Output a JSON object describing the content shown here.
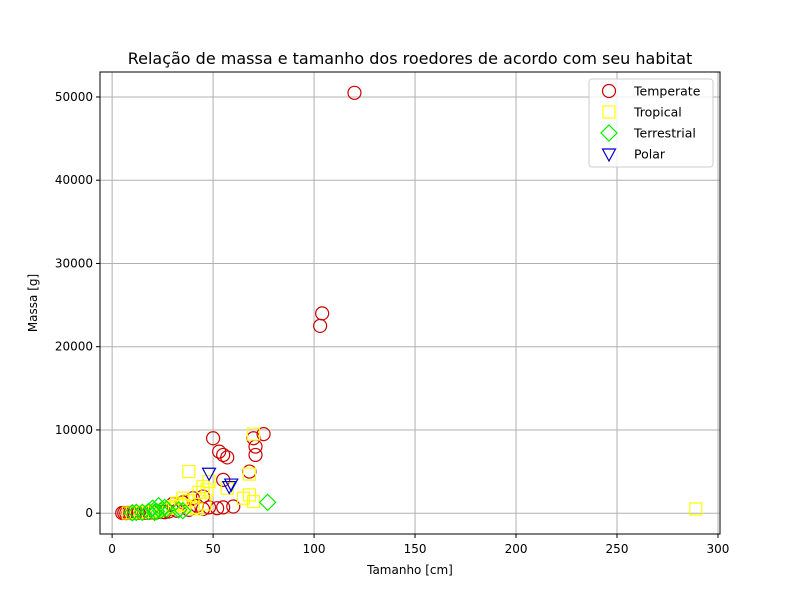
{
  "chart_data": {
    "type": "scatter",
    "title": "Relação de massa e tamanho dos roedores de acordo com seu habitat",
    "xlabel": "Tamanho [cm]",
    "ylabel": "Massa [g]",
    "xlim": [
      -6,
      301
    ],
    "ylim": [
      -2500,
      53000
    ],
    "xticks": [
      0,
      50,
      100,
      150,
      200,
      250,
      300
    ],
    "yticks": [
      0,
      10000,
      20000,
      30000,
      40000,
      50000
    ],
    "grid": true,
    "legend_position": "top-right",
    "series": [
      {
        "name": "Temperate",
        "marker": "circle",
        "color": "#cc0000",
        "points": [
          [
            120,
            50500
          ],
          [
            104,
            24000
          ],
          [
            103,
            22500
          ],
          [
            50,
            9000
          ],
          [
            70,
            9000
          ],
          [
            75,
            9500
          ],
          [
            71,
            8000
          ],
          [
            71,
            7000
          ],
          [
            53,
            7400
          ],
          [
            55,
            7000
          ],
          [
            57,
            6700
          ],
          [
            68,
            5000
          ],
          [
            55,
            4000
          ],
          [
            45,
            2000
          ],
          [
            40,
            1800
          ],
          [
            35,
            1300
          ],
          [
            30,
            1100
          ],
          [
            42,
            900
          ],
          [
            48,
            700
          ],
          [
            52,
            600
          ],
          [
            55,
            700
          ],
          [
            60,
            800
          ],
          [
            45,
            500
          ],
          [
            38,
            400
          ],
          [
            32,
            300
          ],
          [
            28,
            200
          ],
          [
            25,
            150
          ],
          [
            20,
            100
          ],
          [
            15,
            80
          ],
          [
            12,
            60
          ],
          [
            10,
            50
          ],
          [
            8,
            40
          ],
          [
            6,
            30
          ],
          [
            5,
            20
          ],
          [
            7,
            10
          ],
          [
            9,
            15
          ],
          [
            11,
            20
          ],
          [
            13,
            30
          ],
          [
            16,
            50
          ],
          [
            18,
            60
          ],
          [
            22,
            90
          ],
          [
            26,
            120
          ]
        ]
      },
      {
        "name": "Tropical",
        "marker": "square",
        "color": "#ffff00",
        "points": [
          [
            289,
            500
          ],
          [
            38,
            5000
          ],
          [
            70,
            9500
          ],
          [
            68,
            4700
          ],
          [
            48,
            3800
          ],
          [
            45,
            3200
          ],
          [
            57,
            3000
          ],
          [
            47,
            2800
          ],
          [
            43,
            2500
          ],
          [
            35,
            1800
          ],
          [
            38,
            1500
          ],
          [
            32,
            1200
          ],
          [
            30,
            800
          ],
          [
            28,
            600
          ],
          [
            25,
            400
          ],
          [
            22,
            300
          ],
          [
            20,
            200
          ],
          [
            18,
            150
          ],
          [
            15,
            100
          ],
          [
            12,
            50
          ],
          [
            10,
            30
          ],
          [
            8,
            20
          ],
          [
            65,
            1800
          ],
          [
            70,
            1400
          ],
          [
            68,
            2200
          ],
          [
            40,
            700
          ],
          [
            42,
            500
          ],
          [
            36,
            900
          ],
          [
            46,
            1100
          ],
          [
            34,
            1000
          ]
        ]
      },
      {
        "name": "Terrestrial",
        "marker": "diamond",
        "color": "#00ee00",
        "points": [
          [
            77,
            1300
          ],
          [
            23,
            900
          ],
          [
            20,
            600
          ],
          [
            26,
            700
          ],
          [
            33,
            400
          ],
          [
            35,
            300
          ],
          [
            22,
            200
          ],
          [
            21,
            100
          ],
          [
            15,
            100
          ],
          [
            12,
            100
          ],
          [
            10,
            50
          ],
          [
            27,
            500
          ],
          [
            24,
            300
          ],
          [
            18,
            200
          ]
        ]
      },
      {
        "name": "Polar",
        "marker": "triangle-down",
        "color": "#0000cc",
        "points": [
          [
            48,
            4800
          ],
          [
            59,
            3500
          ],
          [
            58,
            3200
          ]
        ]
      }
    ]
  }
}
